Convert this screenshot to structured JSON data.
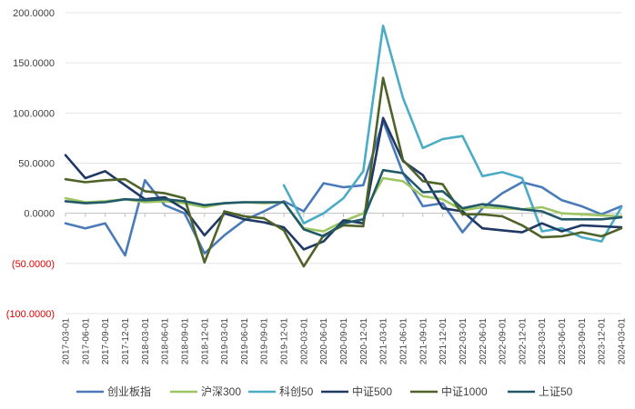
{
  "chart_data": {
    "type": "line",
    "title": "",
    "xlabel": "",
    "ylabel": "",
    "ylim": [
      -100,
      200
    ],
    "yticks": [
      "200.0000",
      "150.0000",
      "100.0000",
      "50.0000",
      "0.0000",
      "(50.0000)",
      "(100.0000)"
    ],
    "ytick_values": [
      200,
      150,
      100,
      50,
      0,
      -50,
      -100
    ],
    "grid": true,
    "legend": "bottom",
    "categories": [
      "2017-03-01",
      "2017-06-01",
      "2017-09-01",
      "2017-12-01",
      "2018-03-01",
      "2018-06-01",
      "2018-09-01",
      "2018-12-01",
      "2019-03-01",
      "2019-06-01",
      "2019-09-01",
      "2019-12-01",
      "2020-03-01",
      "2020-06-01",
      "2020-09-01",
      "2020-12-01",
      "2021-03-01",
      "2021-06-01",
      "2021-09-01",
      "2021-12-01",
      "2022-03-01",
      "2022-06-01",
      "2022-09-01",
      "2022-12-01",
      "2023-03-01",
      "2023-06-01",
      "2023-09-01",
      "2023-12-01",
      "2024-03-01"
    ],
    "series": [
      {
        "name": "创业板指",
        "color": "#4a7ab8",
        "values": [
          -10,
          -15,
          -10,
          -42,
          33,
          8,
          0,
          -40,
          -22,
          -7,
          2,
          12,
          2,
          30,
          26,
          28,
          92,
          40,
          7,
          10,
          -19,
          5,
          20,
          31,
          26,
          13,
          7,
          -1,
          7
        ]
      },
      {
        "name": "沪深300",
        "color": "#9dc564",
        "values": [
          15,
          11,
          12,
          14,
          11,
          12,
          10,
          6,
          10,
          11,
          10,
          11,
          -15,
          -18,
          -8,
          0,
          35,
          32,
          17,
          14,
          3,
          6,
          5,
          4,
          6,
          0,
          -1,
          -2,
          -3
        ]
      },
      {
        "name": "科创50",
        "color": "#4bacc6",
        "values": [
          null,
          null,
          null,
          null,
          null,
          null,
          null,
          null,
          null,
          null,
          null,
          28,
          -10,
          0,
          15,
          42,
          187,
          115,
          65,
          74,
          77,
          37,
          41,
          35,
          -18,
          -15,
          -24,
          -28,
          6
        ]
      },
      {
        "name": "中证500",
        "color": "#1f3864",
        "values": [
          58,
          35,
          42,
          28,
          14,
          16,
          4,
          -22,
          0,
          -6,
          -9,
          -14,
          -36,
          -28,
          -7,
          -10,
          95,
          52,
          38,
          5,
          2,
          -15,
          -17,
          -19,
          -10,
          -18,
          -12,
          -13,
          -14
        ]
      },
      {
        "name": "中证1000",
        "color": "#4f6228",
        "values": [
          34,
          31,
          33,
          34,
          22,
          20,
          15,
          -49,
          2,
          -3,
          -5,
          -17,
          -53,
          -22,
          -12,
          -13,
          135,
          53,
          32,
          29,
          -1,
          -1,
          -3,
          -12,
          -24,
          -23,
          -19,
          -23,
          -15
        ]
      },
      {
        "name": "上证50",
        "color": "#215968",
        "values": [
          12,
          10,
          11,
          14,
          13,
          14,
          12,
          8,
          10,
          11,
          11,
          11,
          -16,
          -23,
          -10,
          -6,
          43,
          40,
          21,
          22,
          5,
          9,
          7,
          4,
          2,
          -6,
          -6,
          -6,
          -4
        ]
      }
    ]
  }
}
